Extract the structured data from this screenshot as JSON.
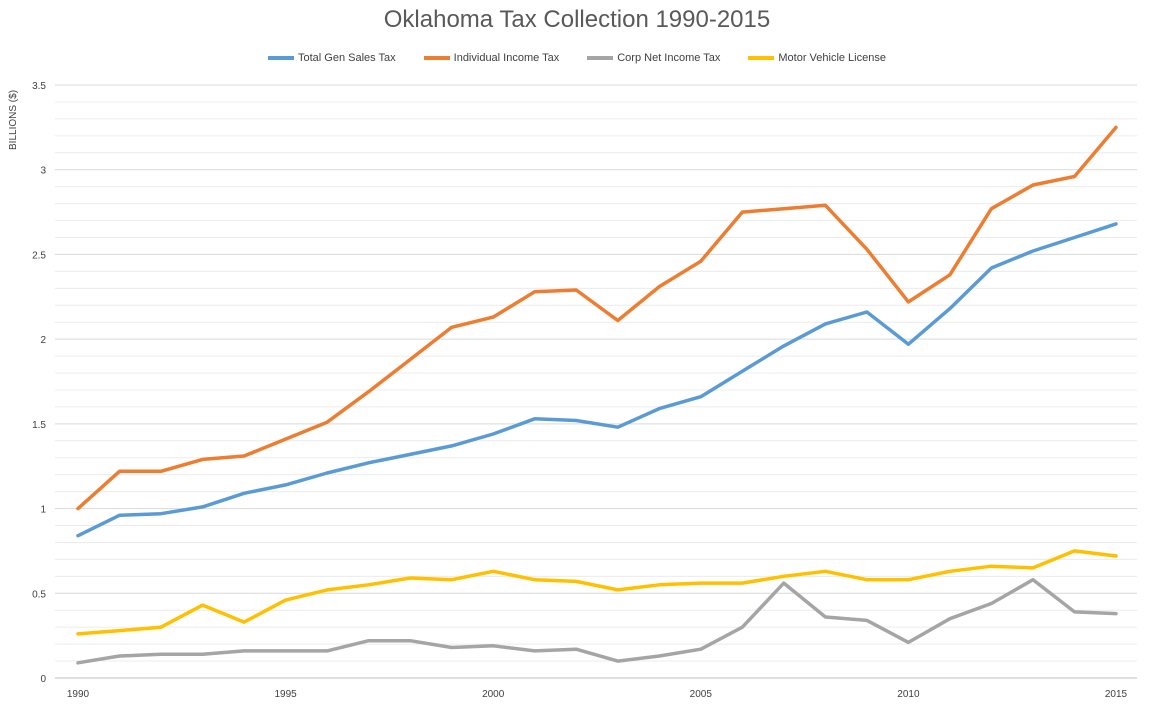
{
  "chart_data": {
    "type": "line",
    "title": "Oklahoma Tax Collection 1990-2015",
    "xlabel": "",
    "ylabel": "BILLIONS ($)",
    "ylim": [
      0,
      3.5
    ],
    "yticks": [
      0,
      0.5,
      1,
      1.5,
      2,
      2.5,
      3,
      3.5
    ],
    "ytick_labels": [
      "0",
      "0.5",
      "1",
      "1.5",
      "2",
      "2.5",
      "3",
      "3.5"
    ],
    "xlim": [
      1990,
      2015
    ],
    "xticks": [
      1990,
      1995,
      2000,
      2005,
      2010,
      2015
    ],
    "xtick_labels": [
      "1990",
      "1995",
      "2000",
      "2005",
      "2010",
      "2015"
    ],
    "grid": true,
    "legend_position": "top",
    "x": [
      1990,
      1991,
      1992,
      1993,
      1994,
      1995,
      1996,
      1997,
      1998,
      1999,
      2000,
      2001,
      2002,
      2003,
      2004,
      2005,
      2006,
      2007,
      2008,
      2009,
      2010,
      2011,
      2012,
      2013,
      2014,
      2015
    ],
    "series": [
      {
        "name": "Total Gen Sales Tax",
        "color": "#5b9bd5",
        "values": [
          0.84,
          0.96,
          0.97,
          1.01,
          1.09,
          1.14,
          1.21,
          1.27,
          1.32,
          1.37,
          1.44,
          1.53,
          1.52,
          1.48,
          1.59,
          1.66,
          1.81,
          1.96,
          2.09,
          2.16,
          1.97,
          2.18,
          2.42,
          2.52,
          2.6,
          2.68
        ]
      },
      {
        "name": "Individual Income Tax",
        "color": "#ed7d31",
        "values": [
          1.0,
          1.22,
          1.22,
          1.29,
          1.31,
          1.41,
          1.51,
          1.69,
          1.88,
          2.07,
          2.13,
          2.28,
          2.29,
          2.11,
          2.31,
          2.46,
          2.75,
          2.77,
          2.79,
          2.53,
          2.22,
          2.38,
          2.77,
          2.91,
          2.96,
          3.25
        ]
      },
      {
        "name": "Corp Net Income Tax",
        "color": "#a5a5a5",
        "values": [
          0.09,
          0.13,
          0.14,
          0.14,
          0.16,
          0.16,
          0.16,
          0.22,
          0.22,
          0.18,
          0.19,
          0.16,
          0.17,
          0.1,
          0.13,
          0.17,
          0.3,
          0.56,
          0.36,
          0.34,
          0.21,
          0.35,
          0.44,
          0.58,
          0.39,
          0.38
        ]
      },
      {
        "name": "Motor Vehicle License",
        "color": "#ffc000",
        "values": [
          0.26,
          0.28,
          0.3,
          0.43,
          0.33,
          0.46,
          0.52,
          0.55,
          0.59,
          0.58,
          0.63,
          0.58,
          0.57,
          0.52,
          0.55,
          0.56,
          0.56,
          0.6,
          0.63,
          0.58,
          0.58,
          0.63,
          0.66,
          0.65,
          0.75,
          0.72
        ]
      }
    ]
  }
}
